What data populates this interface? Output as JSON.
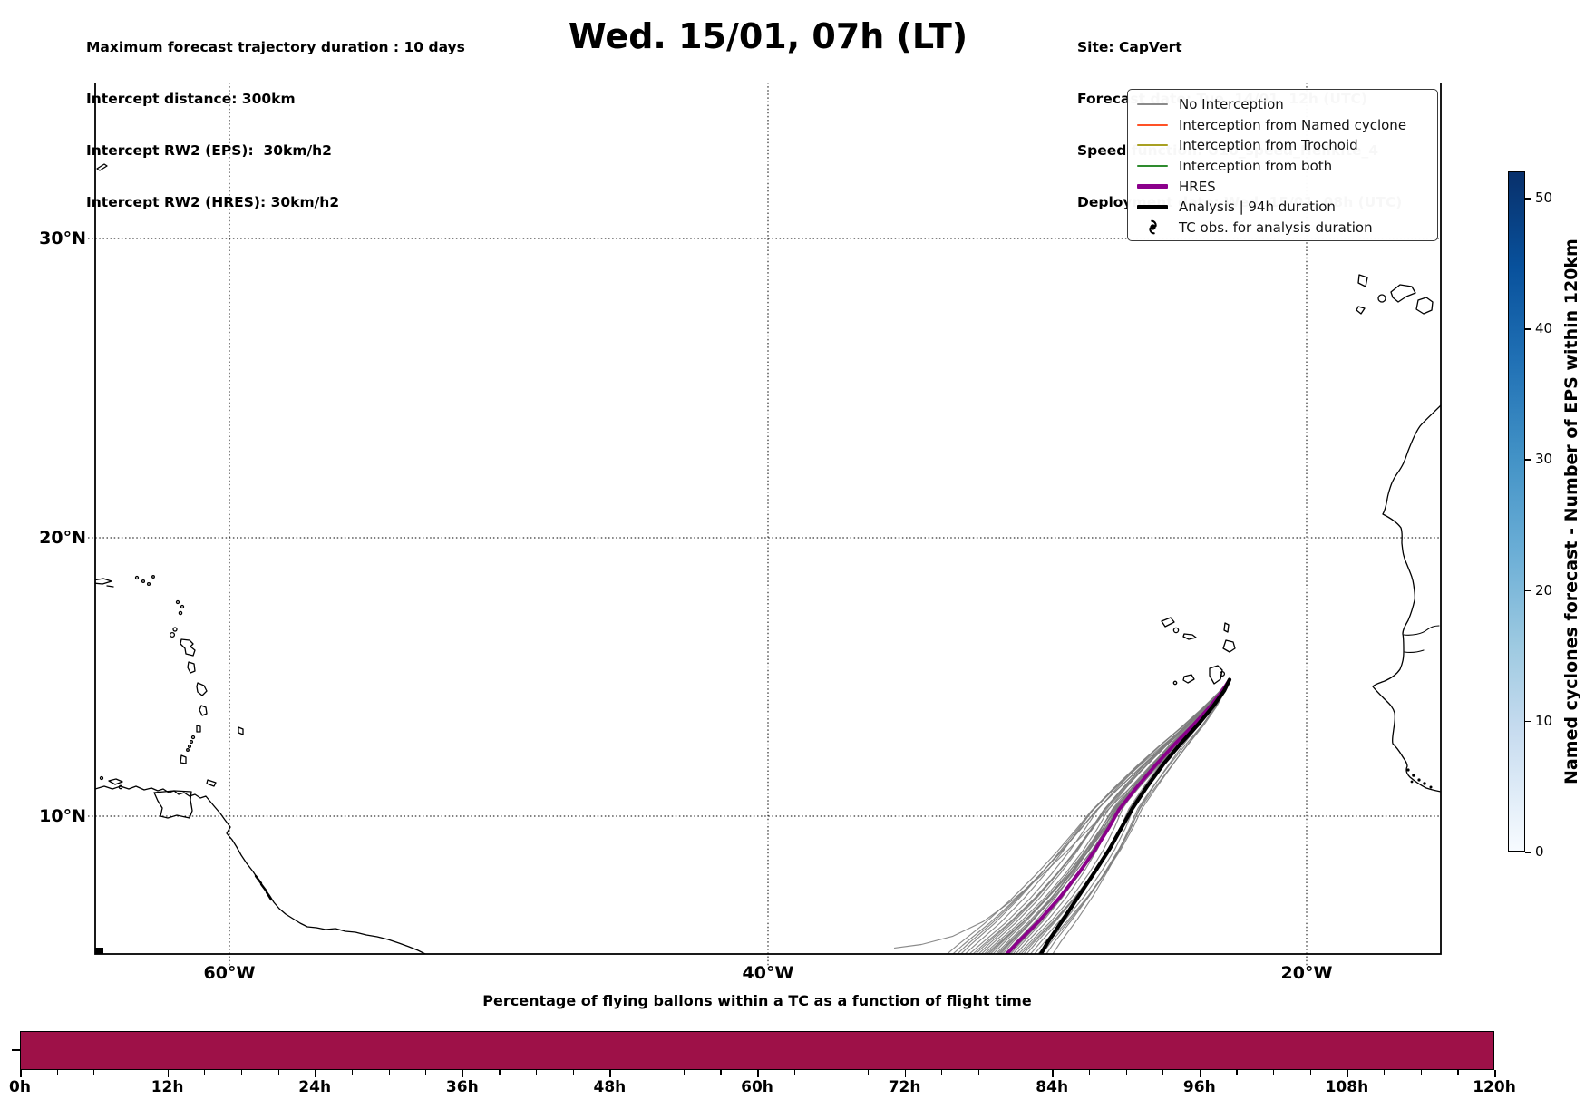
{
  "header_left": {
    "lines": [
      "Maximum forecast trajectory duration : 10 days",
      "Intercept distance: 300km",
      "Intercept RW2 (EPS):  30km/h2",
      "Intercept RW2 (HRES): 30km/h2"
    ]
  },
  "title": "Wed. 15/01, 07h (LT)",
  "header_right": {
    "lines": [
      "Site: CapVert",
      "Forecast date: Tue. 14/01, 12h (UTC)",
      "Speed function: U10_speed_Helikite_4",
      "Deployment date: Wed. 15/01, 08h (UTC)"
    ]
  },
  "legend": {
    "items": [
      {
        "label": "No Interception",
        "color": "#8a8a8a",
        "lw": 2,
        "symbol": "line"
      },
      {
        "label": "Interception from Named cyclone",
        "color": "#ff5126",
        "lw": 2,
        "symbol": "line"
      },
      {
        "label": "Interception from Trochoid",
        "color": "#a8a022",
        "lw": 2,
        "symbol": "line"
      },
      {
        "label": "Interception from both",
        "color": "#2e8b2e",
        "lw": 2,
        "symbol": "line"
      },
      {
        "label": "HRES",
        "color": "#8b008b",
        "lw": 5,
        "symbol": "line"
      },
      {
        "label": "Analysis | 94h duration",
        "color": "#000000",
        "lw": 5,
        "symbol": "line"
      },
      {
        "label": "TC obs. for analysis duration",
        "color": "#000000",
        "lw": 0,
        "symbol": "tc-cyclone"
      }
    ]
  },
  "map_axes": {
    "x_labels": [
      "60°W",
      "40°W",
      "20°W"
    ],
    "y_labels": [
      "30°N",
      "20°N",
      "10°N"
    ]
  },
  "colorbar": {
    "title": "Named cyclones forecast - Number of EPS within 120km",
    "ticks": [
      0,
      10,
      20,
      30,
      40,
      50
    ],
    "vmin": 0,
    "vmax": 52,
    "colormap": "Blues"
  },
  "flight_chart": {
    "title": "Percentage of flying ballons within a TC as a function of flight time",
    "x_tick_labels": [
      "0h",
      "12h",
      "24h",
      "36h",
      "48h",
      "60h",
      "72h",
      "84h",
      "96h",
      "108h",
      "120h"
    ],
    "bar_color": "#9e1148",
    "bar_percent": 100
  },
  "chart_data": [
    {
      "type": "line",
      "title": "Wed. 15/01, 07h (LT)",
      "map": {
        "projection": "mercator",
        "lon_range": [
          -65,
          -15
        ],
        "lat_range": [
          4.9,
          35.0
        ],
        "gridlines_lon_deg_w": [
          60,
          40,
          20
        ],
        "gridlines_lat_deg_n": [
          30,
          20,
          10
        ],
        "grid": true,
        "legend_position": "upper right"
      },
      "origin_site": {
        "name": "CapVert",
        "lon": -23.0,
        "lat": 14.95
      },
      "series": [
        {
          "name": "HRES",
          "color": "#8b008b",
          "points_lonlat": [
            [
              -22.85,
              14.95
            ],
            [
              -23.15,
              14.5
            ],
            [
              -23.6,
              13.95
            ],
            [
              -24.2,
              13.3
            ],
            [
              -24.9,
              12.6
            ],
            [
              -25.6,
              11.85
            ],
            [
              -26.3,
              11.05
            ],
            [
              -26.95,
              10.25
            ],
            [
              -27.35,
              9.55
            ],
            [
              -27.85,
              8.75
            ],
            [
              -28.45,
              7.9
            ],
            [
              -29.15,
              7.0
            ],
            [
              -29.95,
              6.1
            ],
            [
              -30.75,
              5.3
            ],
            [
              -31.35,
              4.78
            ]
          ]
        },
        {
          "name": "Analysis | 94h duration",
          "color": "#000000",
          "duration_h": 94,
          "points_lonlat": [
            [
              -22.85,
              14.95
            ],
            [
              -23.05,
              14.55
            ],
            [
              -23.45,
              14.0
            ],
            [
              -24.0,
              13.35
            ],
            [
              -24.65,
              12.65
            ],
            [
              -25.3,
              11.9
            ],
            [
              -25.9,
              11.1
            ],
            [
              -26.45,
              10.3
            ],
            [
              -26.85,
              9.6
            ],
            [
              -27.3,
              8.8
            ],
            [
              -27.85,
              7.95
            ],
            [
              -28.45,
              7.05
            ],
            [
              -29.05,
              6.15
            ],
            [
              -29.6,
              5.35
            ],
            [
              -30.0,
              4.78
            ]
          ]
        },
        {
          "name": "EPS ensemble (No Interception)",
          "color": "#7d7d7d",
          "member_count": 37,
          "end_lon_offsets": [
            -2.45,
            -2.2,
            -2.0,
            -1.85,
            -1.7,
            -1.55,
            -1.4,
            -1.28,
            -1.15,
            -1.05,
            -0.95,
            -0.85,
            -0.75,
            -0.65,
            -0.55,
            -0.45,
            -0.38,
            -0.3,
            -0.22,
            -0.15,
            -0.08,
            0.0,
            0.08,
            0.16,
            0.25,
            0.35,
            0.45,
            0.55,
            0.67,
            0.8,
            0.95,
            1.1,
            1.25,
            1.42,
            1.6,
            1.85
          ],
          "outlier_points_lonlat": [
            [
              -22.85,
              14.95
            ],
            [
              -23.2,
              14.45
            ],
            [
              -23.75,
              13.8
            ],
            [
              -24.45,
              13.05
            ],
            [
              -25.25,
              12.25
            ],
            [
              -26.1,
              11.45
            ],
            [
              -27.0,
              10.6
            ],
            [
              -27.9,
              9.7
            ],
            [
              -28.85,
              8.75
            ],
            [
              -29.85,
              7.8
            ],
            [
              -30.9,
              6.9
            ],
            [
              -32.0,
              6.1
            ],
            [
              -33.15,
              5.55
            ],
            [
              -34.3,
              5.25
            ],
            [
              -35.3,
              5.12
            ]
          ]
        }
      ]
    },
    {
      "type": "bar",
      "title": "Percentage of flying ballons within a TC as a function of flight time",
      "x_range_hours": [
        0,
        120
      ],
      "x_tick_step_hours": 12,
      "x_minor_tick_step_hours": 3,
      "categories": [
        "0h-120h"
      ],
      "values": [
        100
      ],
      "bar_color": "#9e1148",
      "note": "single full-width bar at constant 100% for the whole 0-120h flight time"
    }
  ]
}
